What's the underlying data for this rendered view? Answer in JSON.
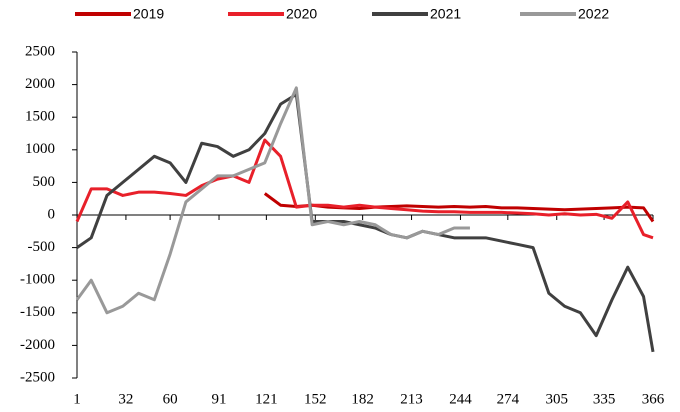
{
  "chart_data": {
    "type": "line",
    "x": [
      1,
      10,
      20,
      30,
      40,
      50,
      60,
      70,
      80,
      90,
      100,
      110,
      120,
      130,
      140,
      150,
      160,
      170,
      180,
      190,
      200,
      210,
      220,
      230,
      240,
      250,
      260,
      270,
      280,
      290,
      300,
      310,
      320,
      330,
      340,
      350,
      360,
      366
    ],
    "series": [
      {
        "name": "2019",
        "color": "#c00000",
        "values": [
          null,
          null,
          null,
          null,
          null,
          null,
          null,
          null,
          null,
          null,
          null,
          null,
          330,
          150,
          130,
          150,
          120,
          110,
          100,
          120,
          130,
          140,
          130,
          120,
          130,
          120,
          130,
          110,
          110,
          100,
          90,
          80,
          90,
          100,
          110,
          120,
          110,
          -100
        ]
      },
      {
        "name": "2020",
        "color": "#e8202a",
        "values": [
          -100,
          400,
          400,
          300,
          350,
          350,
          330,
          300,
          450,
          550,
          600,
          500,
          1150,
          900,
          120,
          150,
          150,
          120,
          150,
          120,
          100,
          80,
          60,
          50,
          50,
          40,
          40,
          40,
          30,
          20,
          0,
          20,
          0,
          10,
          -50,
          200,
          -300,
          -350
        ]
      },
      {
        "name": "2021",
        "color": "#404040",
        "values": [
          -500,
          -350,
          300,
          500,
          700,
          900,
          800,
          500,
          1100,
          1050,
          900,
          1000,
          1250,
          1700,
          1850,
          -100,
          -100,
          -100,
          -150,
          -200,
          -300,
          -350,
          -250,
          -300,
          -350,
          -350,
          -350,
          -400,
          -450,
          -500,
          -1200,
          -1400,
          -1500,
          -1850,
          -1300,
          -800,
          -1250,
          -2100
        ]
      },
      {
        "name": "2022",
        "color": "#999999",
        "values": [
          -1300,
          -1000,
          -1500,
          -1400,
          -1200,
          -1300,
          -600,
          200,
          400,
          600,
          600,
          700,
          800,
          1400,
          1950,
          -150,
          -100,
          -150,
          -100,
          -150,
          -300,
          -350,
          -250,
          -300,
          -200,
          -200,
          null,
          null,
          null,
          null,
          null,
          null,
          null,
          null,
          null,
          null,
          null,
          null
        ]
      }
    ],
    "xlim": [
      1,
      366
    ],
    "xticks": [
      1,
      32,
      60,
      91,
      121,
      152,
      182,
      213,
      244,
      274,
      305,
      335,
      366
    ],
    "ylim": [
      -2500,
      2500
    ],
    "yticks": [
      -2500,
      -2000,
      -1500,
      -1000,
      -500,
      0,
      500,
      1000,
      1500,
      2000,
      2500
    ]
  }
}
